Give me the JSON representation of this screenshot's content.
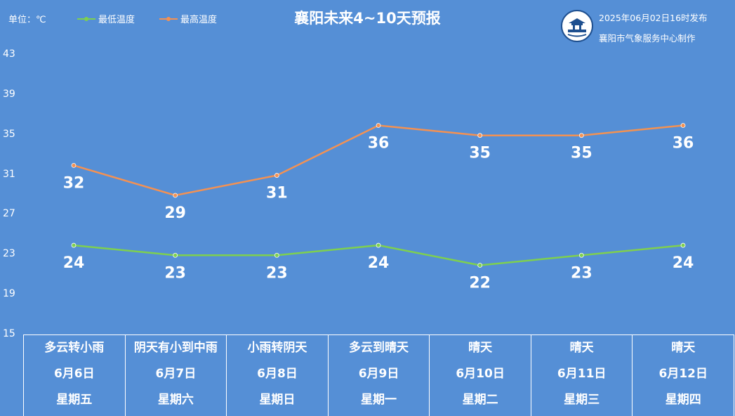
{
  "header": {
    "unit_label": "单位：℃",
    "title": "襄阳未来4~10天预报",
    "issued": "2025年06月02日16时发布",
    "maker": "襄阳市气象服务中心制作",
    "logo_icon": "xiangyang-weather-logo-icon"
  },
  "colors": {
    "background": "#558fd6",
    "low": "#7ed04f",
    "high": "#f49152"
  },
  "chart_data": {
    "type": "line",
    "categories": [
      "6月6日",
      "6月7日",
      "6月8日",
      "6月9日",
      "6月10日",
      "6月11日",
      "6月12日"
    ],
    "series": [
      {
        "name": "最低温度",
        "values": [
          24,
          23,
          23,
          24,
          22,
          23,
          24
        ],
        "color": "#7ed04f"
      },
      {
        "name": "最高温度",
        "values": [
          32,
          29,
          31,
          36,
          35,
          35,
          36
        ],
        "color": "#f49152"
      }
    ],
    "ylim": [
      15,
      43
    ],
    "yticks": [
      15,
      19,
      23,
      27,
      31,
      35,
      39,
      43
    ],
    "ylabel": "单位：℃",
    "legend": "top-left"
  },
  "days": [
    {
      "weather": "多云转小雨",
      "date": "6月6日",
      "weekday": "星期五"
    },
    {
      "weather": "阴天有小到中雨",
      "date": "6月7日",
      "weekday": "星期六"
    },
    {
      "weather": "小雨转阴天",
      "date": "6月8日",
      "weekday": "星期日"
    },
    {
      "weather": "多云到晴天",
      "date": "6月9日",
      "weekday": "星期一"
    },
    {
      "weather": "晴天",
      "date": "6月10日",
      "weekday": "星期二"
    },
    {
      "weather": "晴天",
      "date": "6月11日",
      "weekday": "星期三"
    },
    {
      "weather": "晴天",
      "date": "6月12日",
      "weekday": "星期四"
    }
  ]
}
